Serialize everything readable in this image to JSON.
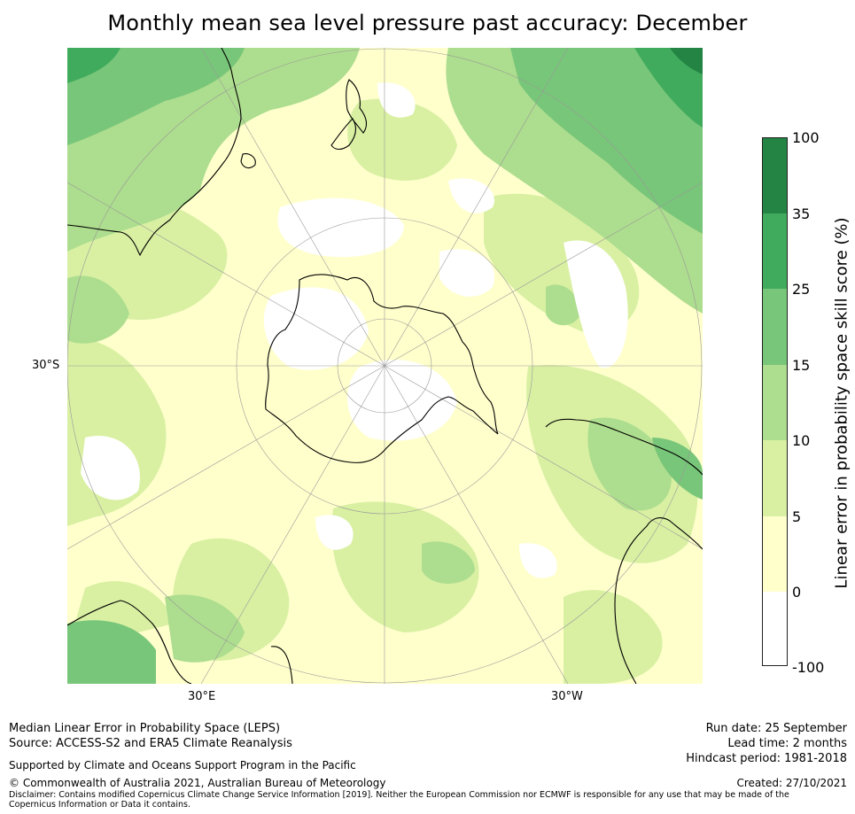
{
  "title": "Monthly mean sea level pressure past accuracy: December",
  "map": {
    "projection": "south-polar-stereographic",
    "latitude_labels": [
      "30°S"
    ],
    "longitude_labels": [
      "30°E",
      "30°W"
    ]
  },
  "colorbar": {
    "label": "Linear error in probability space skill score (%)",
    "ticks": [
      "100",
      "35",
      "25",
      "15",
      "10",
      "5",
      "0",
      "-100"
    ],
    "bins": [
      {
        "range": "-100 to 0",
        "color": "#ffffff"
      },
      {
        "range": "0 to 5",
        "color": "#ffffcc"
      },
      {
        "range": "5 to 10",
        "color": "#d9f0a3"
      },
      {
        "range": "10 to 15",
        "color": "#addd8e"
      },
      {
        "range": "15 to 25",
        "color": "#78c679"
      },
      {
        "range": "25 to 35",
        "color": "#41ab5d"
      },
      {
        "range": "35 to 100",
        "color": "#238443"
      }
    ]
  },
  "footer": {
    "line1": "Median Linear Error in Probability Space (LEPS)",
    "line2": "Source: ACCESS-S2 and ERA5 Climate Reanalysis",
    "support": "Supported by Climate and Oceans Support Program in the Pacific",
    "copyright": "© Commonwealth of Australia 2021, Australian Bureau of Meteorology",
    "disclaimer": "Disclaimer: Contains modified Copernicus Climate Change Service Information [2019]. Neither the European Commission nor ECMWF is responsible for any use that may be made of the Copernicus Information or Data it contains.",
    "run_date": "Run date: 25 September",
    "lead_time": "Lead time: 2 months",
    "hindcast": "Hindcast period: 1981-2018",
    "created": "Created: 27/10/2021"
  }
}
